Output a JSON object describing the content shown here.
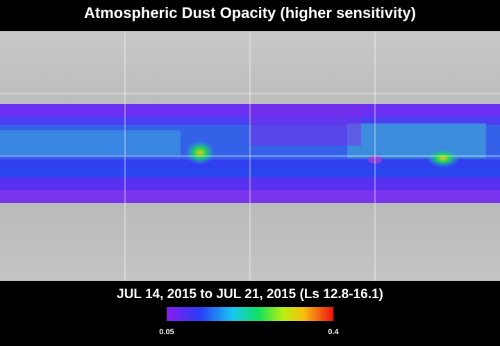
{
  "header": {
    "title": "Atmospheric Dust Opacity (higher sensitivity)"
  },
  "footer": {
    "date_range": "JUL 14, 2015 to JUL 21, 2015 (Ls 12.8-16.1)"
  },
  "colorbar": {
    "min": 0.05,
    "max": 0.4
  }
}
